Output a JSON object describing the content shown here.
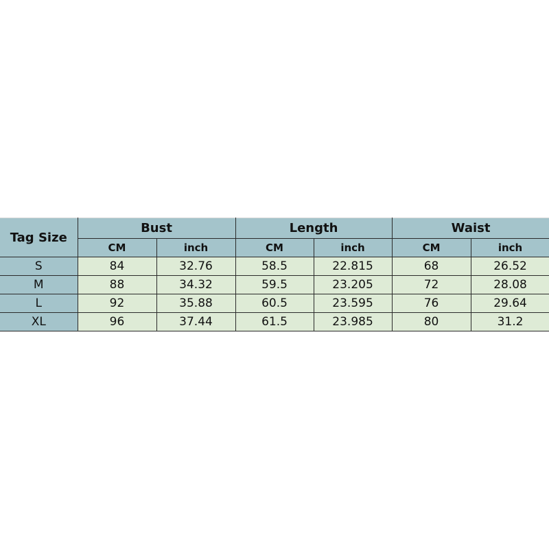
{
  "table": {
    "tag_size_label": "Tag Size",
    "groups": [
      "Bust",
      "Length",
      "Waist"
    ],
    "units": [
      "CM",
      "inch",
      "CM",
      "inch",
      "CM",
      "inch"
    ],
    "rows": [
      {
        "size": "S",
        "values": [
          "84",
          "32.76",
          "58.5",
          "22.815",
          "68",
          "26.52"
        ]
      },
      {
        "size": "M",
        "values": [
          "88",
          "34.32",
          "59.5",
          "23.205",
          "72",
          "28.08"
        ]
      },
      {
        "size": "L",
        "values": [
          "92",
          "35.88",
          "60.5",
          "23.595",
          "76",
          "29.64"
        ]
      },
      {
        "size": "XL",
        "values": [
          "96",
          "37.44",
          "61.5",
          "23.985",
          "80",
          "31.2"
        ]
      }
    ]
  },
  "colors": {
    "header": "#a4c4cb",
    "cell": "#deebd6"
  }
}
